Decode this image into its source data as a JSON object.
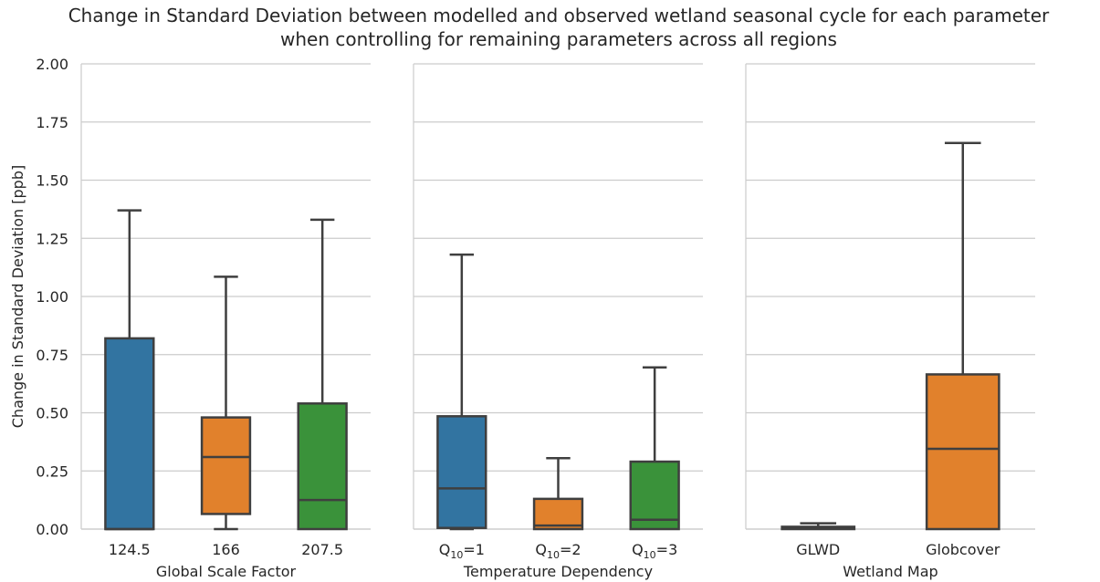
{
  "chart_data": {
    "type": "box",
    "title_lines": [
      "Change in Standard Deviation between modelled and observed wetland seasonal cycle for each parameter",
      "when controlling for remaining parameters across all regions"
    ],
    "ylabel": "Change in Standard Deviation [ppb]",
    "ylim": [
      0,
      2.0
    ],
    "yticks": [
      "0.00",
      "0.25",
      "0.50",
      "0.75",
      "1.00",
      "1.25",
      "1.50",
      "1.75",
      "2.00"
    ],
    "grid": true,
    "palette": [
      "#3274a1",
      "#e1812c",
      "#3a923a"
    ],
    "edge_color": "#3f3f3f",
    "panels": [
      {
        "xlabel": "Global Scale Factor",
        "boxes": [
          {
            "label": "124.5",
            "min": 0.0,
            "q1": 0.0,
            "median": 0.0,
            "q3": 0.82,
            "max": 1.37
          },
          {
            "label": "166",
            "min": 0.0,
            "q1": 0.065,
            "median": 0.31,
            "q3": 0.48,
            "max": 1.085
          },
          {
            "label": "207.5",
            "min": 0.0,
            "q1": 0.0,
            "median": 0.125,
            "q3": 0.54,
            "max": 1.33
          }
        ]
      },
      {
        "xlabel": "Temperature Dependency",
        "boxes": [
          {
            "label": "Q",
            "sub": "10",
            "suffix": "=1",
            "min": 0.0,
            "q1": 0.005,
            "median": 0.175,
            "q3": 0.485,
            "max": 1.18
          },
          {
            "label": "Q",
            "sub": "10",
            "suffix": "=2",
            "min": 0.0,
            "q1": 0.0,
            "median": 0.015,
            "q3": 0.13,
            "max": 0.305
          },
          {
            "label": "Q",
            "sub": "10",
            "suffix": "=3",
            "min": 0.0,
            "q1": 0.0,
            "median": 0.04,
            "q3": 0.29,
            "max": 0.695
          }
        ]
      },
      {
        "xlabel": "Wetland Map",
        "boxes": [
          {
            "label": "GLWD",
            "min": 0.0,
            "q1": 0.0,
            "median": 0.005,
            "q3": 0.01,
            "max": 0.025
          },
          {
            "label": "Globcover",
            "min": 0.0,
            "q1": 0.0,
            "median": 0.345,
            "q3": 0.665,
            "max": 1.66
          }
        ]
      }
    ]
  }
}
